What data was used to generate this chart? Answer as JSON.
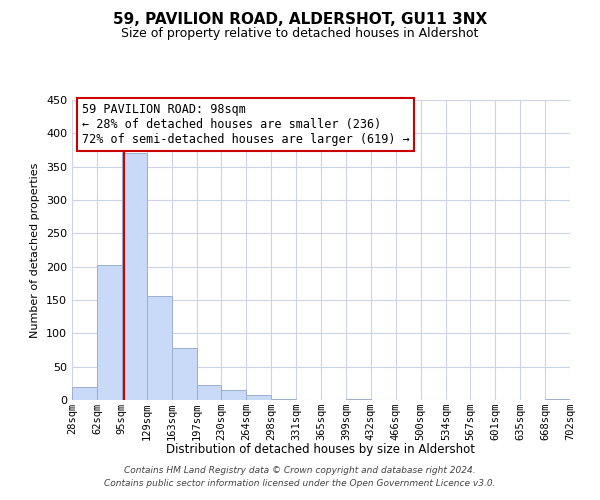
{
  "title": "59, PAVILION ROAD, ALDERSHOT, GU11 3NX",
  "subtitle": "Size of property relative to detached houses in Aldershot",
  "xlabel": "Distribution of detached houses by size in Aldershot",
  "ylabel": "Number of detached properties",
  "bin_edges": [
    28,
    62,
    95,
    129,
    163,
    197,
    230,
    264,
    298,
    331,
    365,
    399,
    432,
    466,
    500,
    534,
    567,
    601,
    635,
    668,
    702
  ],
  "bar_heights": [
    20,
    203,
    370,
    156,
    78,
    22,
    15,
    8,
    1,
    0,
    0,
    1,
    0,
    0,
    0,
    0,
    0,
    0,
    0,
    2
  ],
  "bar_color": "#c9daf8",
  "bar_edge_color": "#9ab0cc",
  "property_size": 98,
  "property_line_color": "#cc0000",
  "annotation_title": "59 PAVILION ROAD: 98sqm",
  "annotation_line1": "← 28% of detached houses are smaller (236)",
  "annotation_line2": "72% of semi-detached houses are larger (619) →",
  "annotation_box_edge_color": "#cc0000",
  "ylim": [
    0,
    450
  ],
  "tick_labels": [
    "28sqm",
    "62sqm",
    "95sqm",
    "129sqm",
    "163sqm",
    "197sqm",
    "230sqm",
    "264sqm",
    "298sqm",
    "331sqm",
    "365sqm",
    "399sqm",
    "432sqm",
    "466sqm",
    "500sqm",
    "534sqm",
    "567sqm",
    "601sqm",
    "635sqm",
    "668sqm",
    "702sqm"
  ],
  "footer_line1": "Contains HM Land Registry data © Crown copyright and database right 2024.",
  "footer_line2": "Contains public sector information licensed under the Open Government Licence v3.0.",
  "background_color": "#ffffff",
  "grid_color": "#ccd5e8",
  "title_fontsize": 11,
  "subtitle_fontsize": 9,
  "ylabel_fontsize": 8,
  "xlabel_fontsize": 8.5,
  "tick_fontsize": 7.5,
  "ytick_fontsize": 8,
  "footer_fontsize": 6.5,
  "ann_fontsize": 8.5
}
